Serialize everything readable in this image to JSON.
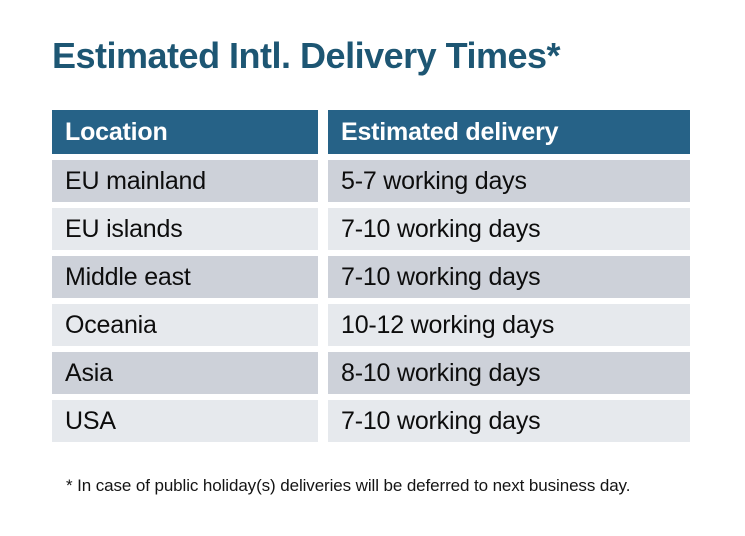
{
  "page": {
    "title": "Estimated Intl. Delivery Times*",
    "footnote": "* In case of public holiday(s) deliveries will be deferred to next business day."
  },
  "table": {
    "headers": [
      "Location",
      "Estimated delivery"
    ],
    "rows": [
      {
        "location": "EU mainland",
        "delivery": "5-7 working days"
      },
      {
        "location": "EU islands",
        "delivery": "7-10 working days"
      },
      {
        "location": "Middle east",
        "delivery": "7-10 working days"
      },
      {
        "location": "Oceania",
        "delivery": "10-12 working days"
      },
      {
        "location": "Asia",
        "delivery": "8-10 working days"
      },
      {
        "location": "USA",
        "delivery": "7-10 working days"
      }
    ]
  },
  "colors": {
    "background": "#ffffff",
    "title_text": "#1d5673",
    "header_bg": "#266287",
    "header_text": "#ffffff",
    "row_dark": "#cdd1d9",
    "row_light": "#e6e9ed",
    "body_text": "#0d0d0d"
  }
}
